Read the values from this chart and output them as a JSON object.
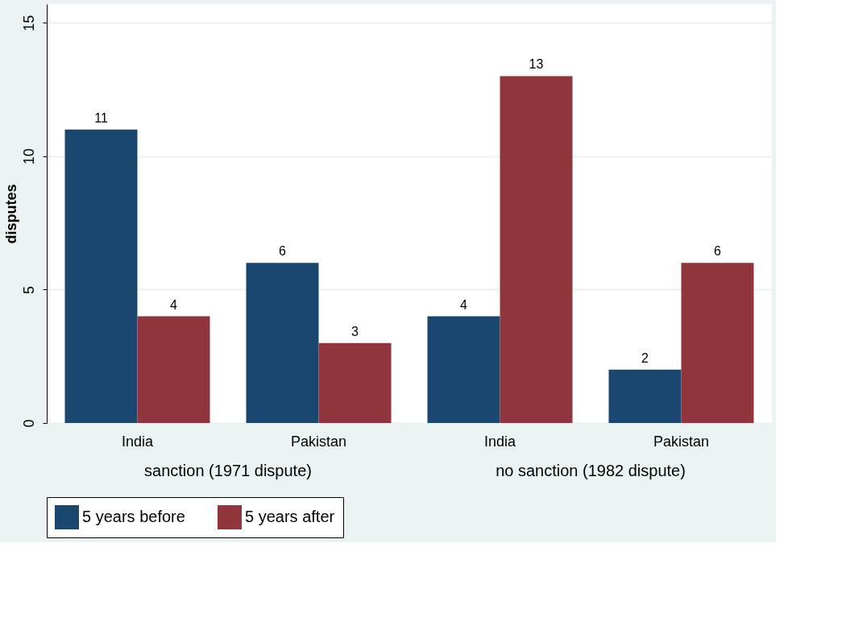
{
  "chart_data": {
    "type": "bar",
    "ylabel": "disputes",
    "categories": [
      "India",
      "Pakistan",
      "India",
      "Pakistan"
    ],
    "series": [
      {
        "name": "5 years before",
        "color": "#1a476f",
        "values": [
          11,
          6,
          4,
          2
        ]
      },
      {
        "name": "5 years after",
        "color": "#90353b",
        "values": [
          4,
          3,
          13,
          6
        ]
      }
    ],
    "ylim": [
      0,
      15.7
    ],
    "yticks": [
      0,
      5,
      10,
      15
    ],
    "grid": "y",
    "data_labels": true,
    "legend": "bottom",
    "annotations": [
      "sanction (1971 dispute)",
      "no sanction (1982 dispute)"
    ]
  }
}
